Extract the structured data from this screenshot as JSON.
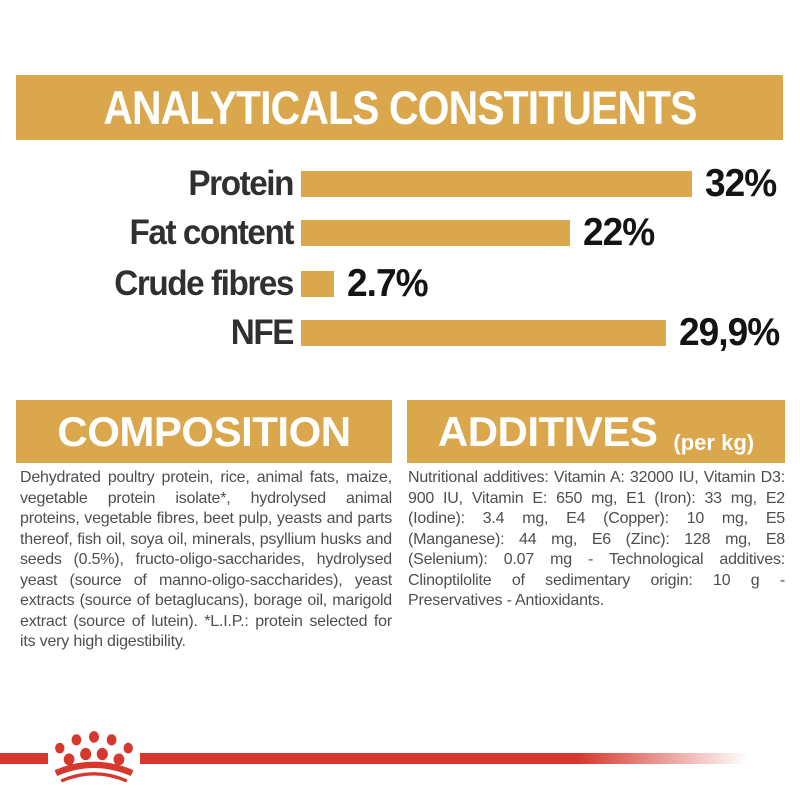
{
  "colors": {
    "gold": "#DAA74C",
    "brand_red": "#D6382E",
    "header_text": "#FFFFFF",
    "chart_label_text": "#303030",
    "chart_value_text": "#141414",
    "body_text": "#4D4E50",
    "background": "#FFFFFF"
  },
  "header": {
    "title": "ANALYTICALS CONSTITUENTS"
  },
  "chart_data": {
    "type": "bar",
    "orientation": "horizontal",
    "title": "ANALYTICALS CONSTITUENTS",
    "categories": [
      "Protein",
      "Fat content",
      "Crude fibres",
      "NFE"
    ],
    "values": [
      32,
      22,
      2.7,
      29.9
    ],
    "value_labels": [
      "32%",
      "22%",
      "2.7%",
      "29,9%"
    ],
    "unit": "percent",
    "xlim": [
      0,
      32
    ],
    "bar_color": "#DAA74C",
    "axes_visible": false,
    "grid": false,
    "legend": "none",
    "value_label_position": "right-of-bar"
  },
  "composition": {
    "title": "COMPOSITION",
    "body": "Dehydrated poultry protein, rice, animal fats, maize, vegetable protein isolate*, hydrolysed animal proteins, vegetable fibres, beet pulp, yeasts and parts thereof, fish oil, soya oil, minerals, psyllium husks and seeds (0.5%), fructo-oligo-saccharides, hydrolysed yeast (source of manno-oligo-saccharides), yeast extracts (source of betaglucans), borage oil, marigold extract (source of lutein). *L.I.P.: protein selected for its very high digestibility."
  },
  "additives": {
    "title": "ADDITIVES",
    "subtitle": "(per kg)",
    "body": "Nutritional additives: Vitamin A: 32000 IU, Vitamin D3: 900 IU, Vitamin E: 650 mg, E1 (Iron): 33 mg, E2 (Iodine): 3.4 mg, E4 (Copper): 10 mg, E5 (Manganese): 44 mg, E6 (Zinc): 128 mg, E8 (Selenium): 0.07 mg - Technological additives: Clinoptilolite of sedimentary origin: 10 g - Preservatives - Antioxidants."
  },
  "footer": {
    "logo": "royal-canin-crown-logo"
  }
}
